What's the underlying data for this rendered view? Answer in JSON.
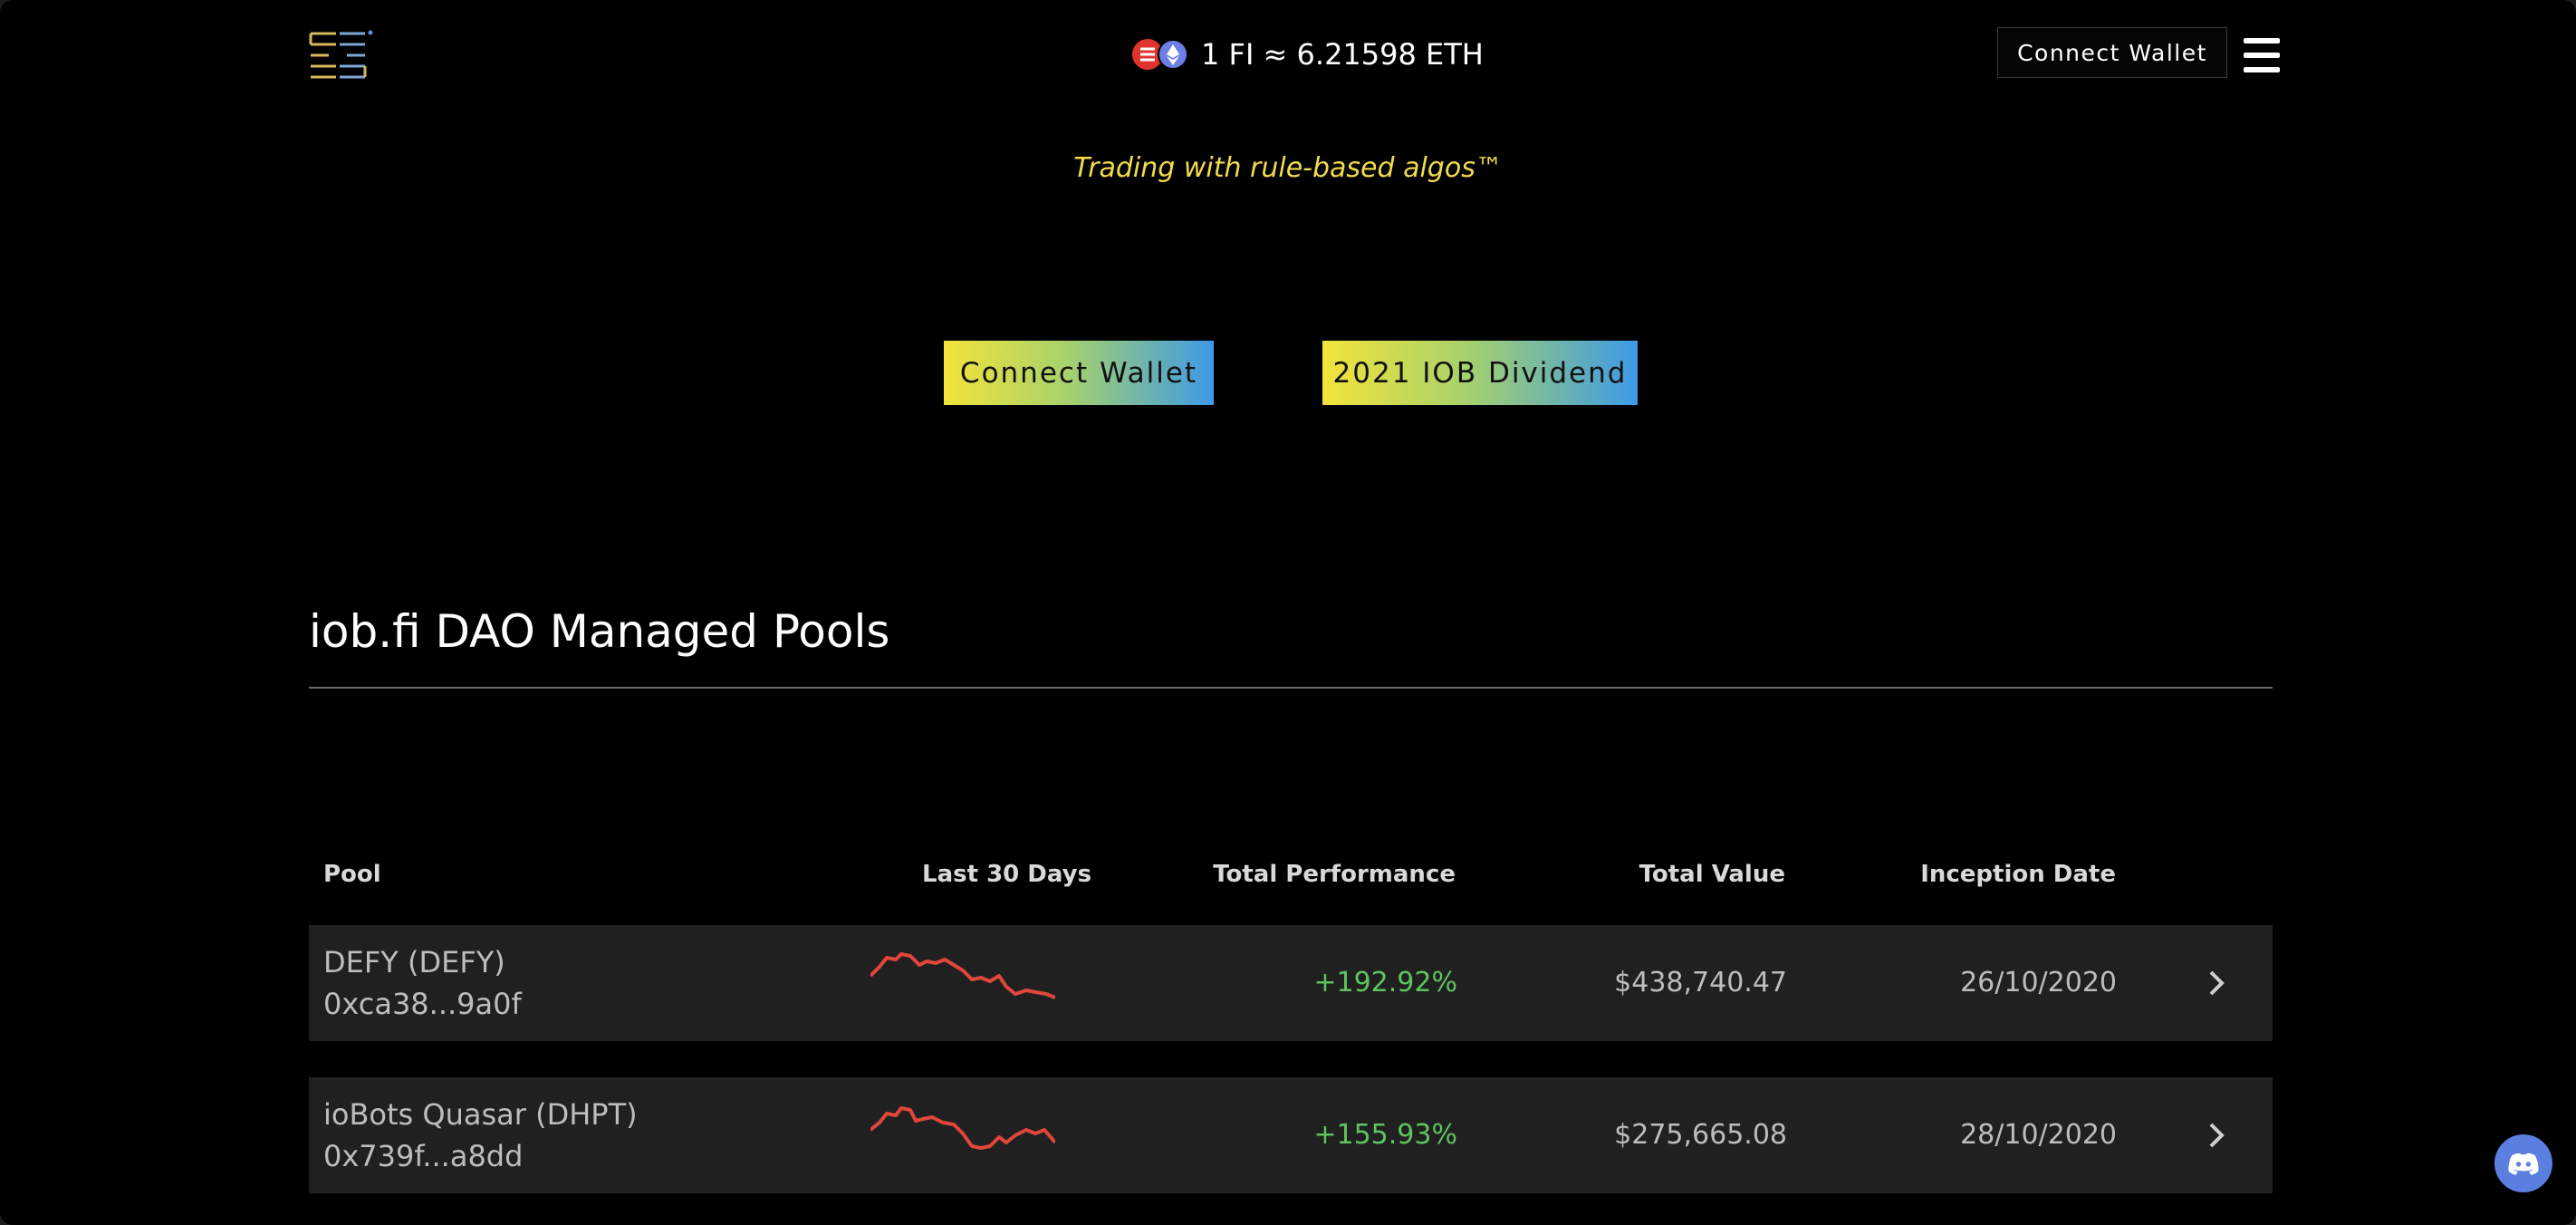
{
  "header": {
    "price_text": "1 FI ≈ 6.21598 ETH",
    "connect_wallet_label": "Connect Wallet",
    "coin_icons": [
      "iob-coin-icon",
      "eth-coin-icon"
    ]
  },
  "hero": {
    "tagline": "Trading with rule-based algos™",
    "buttons": [
      "Connect Wallet",
      "2021 IOB Dividend"
    ]
  },
  "pools": {
    "title": "iob.fi DAO Managed Pools",
    "columns": [
      "Pool",
      "Last 30 Days",
      "Total Performance",
      "Total Value",
      "Inception Date"
    ],
    "rows": [
      {
        "name": "DEFY (DEFY)",
        "address": "0xca38...9a0f",
        "performance": "+192.92%",
        "total_value": "$438,740.47",
        "inception_date": "26/10/2020"
      },
      {
        "name": "ioBots Quasar (DHPT)",
        "address": "0x739f...a8dd",
        "performance": "+155.93%",
        "total_value": "$275,665.08",
        "inception_date": "28/10/2020"
      }
    ]
  },
  "colors": {
    "accent_yellow": "#f1dd49",
    "gradient_start": "#f3e33b",
    "gradient_end": "#3d9ae6",
    "positive_green": "#5ec45e",
    "sparkline_red": "#e0463a",
    "discord_blue": "#5b7fe0"
  }
}
